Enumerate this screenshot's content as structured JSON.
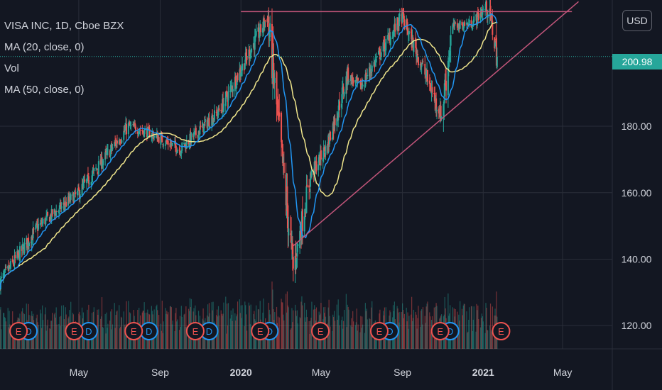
{
  "legend": {
    "title": "VISA INC, 1D, Cboe BZX",
    "ma20": "MA (20, close, 0)",
    "vol": "Vol",
    "ma50": "MA (50, close, 0)"
  },
  "currency_button": "USD",
  "last_price_label": "200.98",
  "colors": {
    "background": "#131722",
    "grid": "#2a2e39",
    "up": "#26a69a",
    "down": "#ef5350",
    "ma20": "#2196f3",
    "ma50": "#f0e68c",
    "trendline": "#c2557a",
    "earnings": "#ef5350",
    "dividends": "#2196f3"
  },
  "chart_data": {
    "type": "candlestick",
    "y_ticks": [
      "140.00",
      "160.00",
      "180.00",
      "120.00"
    ],
    "y_tick_values": [
      140,
      160,
      180,
      120
    ],
    "x_ticks": [
      "May",
      "Sep",
      "2020",
      "May",
      "Sep",
      "2021",
      "May"
    ],
    "x_tick_bold": [
      false,
      false,
      true,
      false,
      false,
      true,
      false
    ],
    "x_tick_dates": [
      "2019-05-01",
      "2019-09-01",
      "2020-01-01",
      "2020-05-01",
      "2020-09-01",
      "2021-01-01",
      "2021-05-01"
    ],
    "x_range": [
      "2019-01-02",
      "2021-07-15"
    ],
    "y_range": [
      113,
      218
    ],
    "last_price": 200.98,
    "anchors": [
      [
        "2019-01-02",
        133
      ],
      [
        "2019-03-01",
        150
      ],
      [
        "2019-05-01",
        160
      ],
      [
        "2019-07-15",
        180
      ],
      [
        "2019-08-15",
        178
      ],
      [
        "2019-10-01",
        173
      ],
      [
        "2019-12-01",
        185
      ],
      [
        "2020-02-10",
        213
      ],
      [
        "2020-03-20",
        137
      ],
      [
        "2020-04-15",
        165
      ],
      [
        "2020-05-10",
        174
      ],
      [
        "2020-06-10",
        195
      ],
      [
        "2020-06-30",
        192
      ],
      [
        "2020-08-31",
        213
      ],
      [
        "2020-10-01",
        198
      ],
      [
        "2020-10-30",
        183
      ],
      [
        "2020-11-15",
        210
      ],
      [
        "2020-12-15",
        211
      ],
      [
        "2021-01-06",
        216
      ],
      [
        "2021-01-14",
        211
      ],
      [
        "2021-01-22",
        200.98
      ]
    ],
    "resistance_line": {
      "price": 214.5,
      "from": "2020-01-01",
      "to": "2021-05-15"
    },
    "support_line": {
      "from": [
        "2020-03-20",
        144
      ],
      "to": [
        "2021-05-25",
        217.5
      ]
    },
    "earnings_dates": [
      "2019-01-30",
      "2019-04-24",
      "2019-07-23",
      "2019-10-24",
      "2020-01-30",
      "2020-04-30",
      "2020-07-28",
      "2020-10-28",
      "2021-01-28"
    ],
    "dividend_dates": [
      "2019-02-14",
      "2019-05-16",
      "2019-08-15",
      "2019-11-14",
      "2020-02-13",
      "2020-08-13",
      "2020-11-12"
    ],
    "event_label_earnings": "E",
    "event_label_dividend": "D"
  }
}
